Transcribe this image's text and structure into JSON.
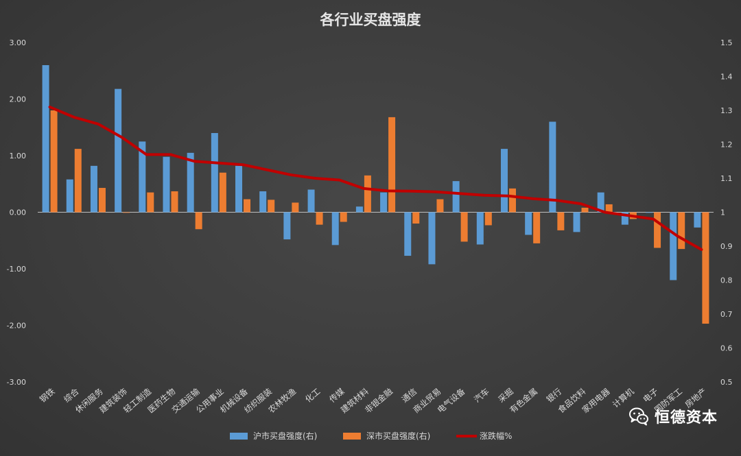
{
  "chart_data": {
    "type": "bar",
    "title": "各行业买盘强度",
    "categories": [
      "钢铁",
      "综合",
      "休闲服务",
      "建筑装饰",
      "轻工制造",
      "医药生物",
      "交通运输",
      "公用事业",
      "机械设备",
      "纺织服装",
      "农林牧渔",
      "化工",
      "传媒",
      "建筑材料",
      "非银金融",
      "通信",
      "商业贸易",
      "电气设备",
      "汽车",
      "采掘",
      "有色金属",
      "银行",
      "食品饮料",
      "家用电器",
      "计算机",
      "电子",
      "国防军工",
      "房地产"
    ],
    "series": [
      {
        "name": "沪市买盘强度(右)",
        "type": "bar",
        "axis": "left",
        "color": "#5b9bd5",
        "values": [
          2.6,
          0.58,
          0.82,
          2.18,
          1.25,
          0.98,
          1.05,
          1.4,
          0.82,
          0.37,
          -0.48,
          0.4,
          -0.58,
          0.1,
          0.35,
          -0.77,
          -0.92,
          0.55,
          -0.57,
          1.12,
          -0.4,
          1.6,
          -0.35,
          0.35,
          -0.22,
          0.0,
          -1.2,
          -0.27
        ]
      },
      {
        "name": "深市买盘强度(右)",
        "type": "bar",
        "axis": "left",
        "color": "#ed7d31",
        "values": [
          1.8,
          1.12,
          0.43,
          0.0,
          0.35,
          0.37,
          -0.3,
          0.7,
          0.23,
          0.22,
          0.17,
          -0.22,
          -0.17,
          0.65,
          1.68,
          -0.2,
          0.23,
          -0.52,
          -0.23,
          0.42,
          -0.55,
          -0.32,
          0.08,
          0.14,
          -0.12,
          -0.63,
          -0.65,
          -1.97
        ]
      },
      {
        "name": "涨跌幅%",
        "type": "line",
        "axis": "right",
        "color": "#c00000",
        "values": [
          1.31,
          1.28,
          1.26,
          1.22,
          1.17,
          1.17,
          1.15,
          1.145,
          1.14,
          1.125,
          1.11,
          1.1,
          1.095,
          1.07,
          1.063,
          1.062,
          1.06,
          1.055,
          1.05,
          1.048,
          1.04,
          1.035,
          1.025,
          1.0,
          0.99,
          0.98,
          0.93,
          0.89
        ]
      }
    ],
    "y_left": {
      "min": -3,
      "max": 3,
      "ticks": [
        "3.00",
        "2.00",
        "1.00",
        "0.00",
        "-1.00",
        "-2.00",
        "-3.00"
      ]
    },
    "y_right": {
      "min": 0.5,
      "max": 1.5,
      "ticks": [
        "1.5",
        "1.4",
        "1.3",
        "1.2",
        "1.1",
        "1",
        "0.9",
        "0.8",
        "0.7",
        "0.6",
        "0.5"
      ]
    },
    "legend_position": "bottom",
    "grid": false,
    "text_color": "#d9d9d9",
    "title_color": "#e6e6e6"
  },
  "watermark": {
    "icon": "wechat-icon",
    "text": "恒德资本"
  }
}
